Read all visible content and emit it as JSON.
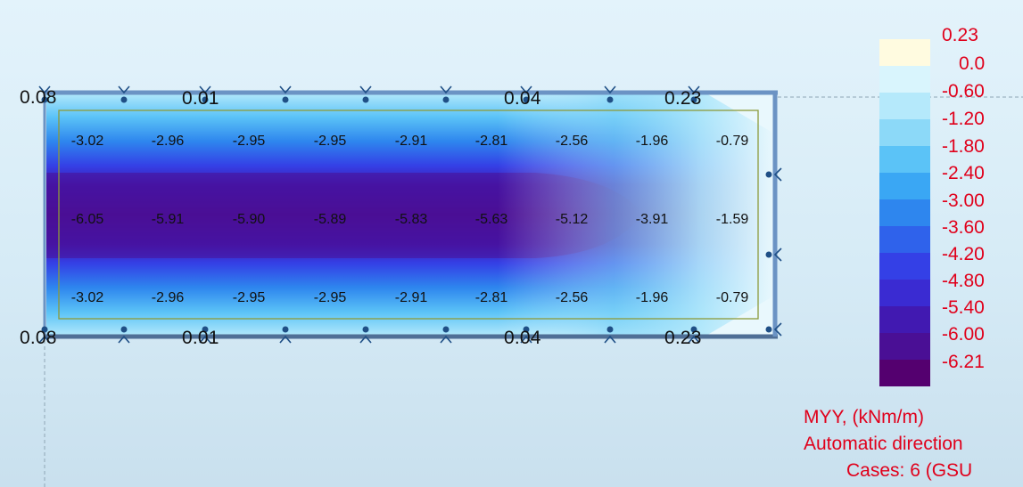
{
  "viewport": {
    "edge_labels_top": [
      "0.08",
      "0.01",
      "0.04",
      "0.23"
    ],
    "edge_labels_bottom": [
      "0.08",
      "0.01",
      "0.04",
      "0.23"
    ],
    "grid_rows": [
      [
        "-3.02",
        "-2.96",
        "-2.95",
        "-2.95",
        "-2.91",
        "-2.81",
        "-2.56",
        "-1.96",
        "-0.79"
      ],
      [
        "-6.05",
        "-5.91",
        "-5.90",
        "-5.89",
        "-5.83",
        "-5.63",
        "-5.12",
        "-3.91",
        "-1.59"
      ],
      [
        "-3.02",
        "-2.96",
        "-2.95",
        "-2.95",
        "-2.91",
        "-2.81",
        "-2.56",
        "-1.96",
        "-0.79"
      ]
    ]
  },
  "legend": {
    "values": [
      "0.23",
      "0.0",
      "-0.60",
      "-1.20",
      "-1.80",
      "-2.40",
      "-3.00",
      "-3.60",
      "-4.20",
      "-4.80",
      "-5.40",
      "-6.00",
      "-6.21"
    ],
    "colors": [
      "#fffbe0",
      "#d9f5fd",
      "#b5e9fb",
      "#8cd9f8",
      "#5bc3f7",
      "#3aa7f4",
      "#2e86ee",
      "#2f62eb",
      "#3440e6",
      "#3a2bd2",
      "#4119b1",
      "#4a0f95",
      "#54006f"
    ],
    "title_line1": "MYY, (kNm/m)",
    "title_line2": "Automatic direction",
    "title_line3": "Cases: 6 (GSU"
  }
}
